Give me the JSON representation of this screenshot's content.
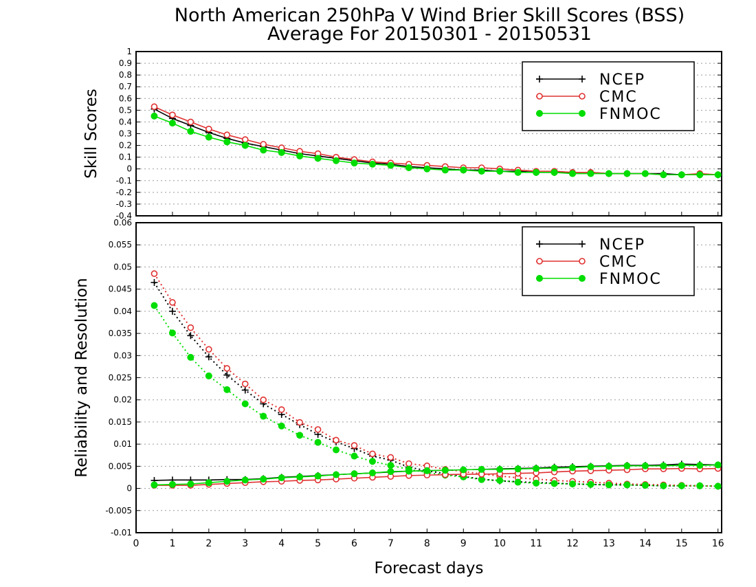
{
  "title": "North American 250hPa V Wind Brier Skill Scores (BSS)",
  "subtitle": "Average For 20150301 - 20150531",
  "xlabel": "Forecast days",
  "colors": {
    "NCEP": "#000000",
    "CMC": "#e03030",
    "FNMOC": "#00dd00",
    "grid": "#9a9a9a"
  },
  "chart_data": [
    {
      "type": "line",
      "ylabel": "Skill Scores",
      "xlim": [
        0,
        16.1
      ],
      "ylim": [
        -0.4,
        1
      ],
      "xticks": [
        0,
        1,
        2,
        3,
        4,
        5,
        6,
        7,
        8,
        9,
        10,
        11,
        12,
        13,
        14,
        15,
        16
      ],
      "yticks": [
        -0.4,
        -0.3,
        -0.2,
        -0.1,
        0,
        0.1,
        0.2,
        0.3,
        0.4,
        0.5,
        0.6,
        0.7,
        0.8,
        0.9,
        1
      ],
      "ytick_labels": [
        "-0.4",
        "-0.3",
        "-0.2",
        "-0.1",
        "0",
        "0.1",
        "0.2",
        "0.3",
        "0.4",
        "0.5",
        "0.6",
        "0.7",
        "0.8",
        "0.9",
        "1"
      ],
      "grid": true,
      "legend_position": "top-right",
      "legend": [
        "NCEP",
        "CMC",
        "FNMOC"
      ],
      "x": [
        0.5,
        1,
        1.5,
        2,
        2.5,
        3,
        3.5,
        4,
        4.5,
        5,
        5.5,
        6,
        6.5,
        7,
        7.5,
        8,
        8.5,
        9,
        9.5,
        10,
        10.5,
        11,
        11.5,
        12,
        12.5,
        13,
        13.5,
        14,
        14.5,
        15,
        15.5,
        16
      ],
      "series": [
        {
          "name": "NCEP",
          "marker": "plus",
          "values": [
            0.51,
            0.43,
            0.37,
            0.31,
            0.26,
            0.22,
            0.19,
            0.16,
            0.13,
            0.11,
            0.09,
            0.07,
            0.05,
            0.04,
            0.02,
            0.01,
            0.0,
            -0.01,
            -0.01,
            -0.02,
            -0.02,
            -0.03,
            -0.03,
            -0.03,
            -0.03,
            -0.04,
            -0.04,
            -0.04,
            -0.04,
            -0.05,
            -0.05,
            -0.05
          ]
        },
        {
          "name": "CMC",
          "marker": "open-circle",
          "values": [
            0.53,
            0.46,
            0.4,
            0.34,
            0.29,
            0.25,
            0.21,
            0.18,
            0.15,
            0.13,
            0.1,
            0.08,
            0.06,
            0.05,
            0.04,
            0.03,
            0.02,
            0.01,
            0.01,
            0.0,
            -0.01,
            -0.02,
            -0.02,
            -0.03,
            -0.03,
            -0.04,
            -0.04,
            -0.04,
            -0.05,
            -0.05,
            -0.04,
            -0.05
          ]
        },
        {
          "name": "FNMOC",
          "marker": "filled-circle",
          "values": [
            0.45,
            0.39,
            0.32,
            0.27,
            0.23,
            0.2,
            0.16,
            0.14,
            0.11,
            0.09,
            0.07,
            0.05,
            0.04,
            0.03,
            0.01,
            0.0,
            -0.01,
            -0.01,
            -0.02,
            -0.02,
            -0.03,
            -0.03,
            -0.03,
            -0.04,
            -0.04,
            -0.04,
            -0.04,
            -0.04,
            -0.05,
            -0.05,
            -0.05,
            -0.05
          ]
        }
      ]
    },
    {
      "type": "line",
      "ylabel": "Reliability and Resolution",
      "xlim": [
        0,
        16.1
      ],
      "ylim": [
        -0.01,
        0.06
      ],
      "xticks": [
        0,
        1,
        2,
        3,
        4,
        5,
        6,
        7,
        8,
        9,
        10,
        11,
        12,
        13,
        14,
        15,
        16
      ],
      "yticks": [
        -0.01,
        -0.005,
        0,
        0.005,
        0.01,
        0.015,
        0.02,
        0.025,
        0.03,
        0.035,
        0.04,
        0.045,
        0.05,
        0.055,
        0.06
      ],
      "ytick_labels": [
        "-0.01",
        "-0.005",
        "0",
        "0.005",
        "0.01",
        "0.015",
        "0.02",
        "0.025",
        "0.03",
        "0.035",
        "0.04",
        "0.045",
        "0.05",
        "0.055",
        "0.06"
      ],
      "grid": true,
      "legend_position": "top-right",
      "legend": [
        "NCEP",
        "CMC",
        "FNMOC"
      ],
      "x": [
        0.5,
        1,
        1.5,
        2,
        2.5,
        3,
        3.5,
        4,
        4.5,
        5,
        5.5,
        6,
        6.5,
        7,
        7.5,
        8,
        8.5,
        9,
        9.5,
        10,
        10.5,
        11,
        11.5,
        12,
        12.5,
        13,
        13.5,
        14,
        14.5,
        15,
        15.5,
        16
      ],
      "series": [
        {
          "name": "NCEP",
          "marker": "plus",
          "line": "dotted",
          "values": [
            0.0465,
            0.04,
            0.0345,
            0.0297,
            0.0256,
            0.0222,
            0.0191,
            0.0167,
            0.0144,
            0.0122,
            0.0105,
            0.009,
            0.0073,
            0.0064,
            0.0048,
            0.004,
            0.0033,
            0.0027,
            0.0021,
            0.0017,
            0.0015,
            0.0013,
            0.0012,
            0.001,
            0.0009,
            0.0008,
            0.0008,
            0.0007,
            0.0006,
            0.0006,
            0.0006,
            0.0005
          ]
        },
        {
          "name": "CMC",
          "marker": "open-circle",
          "line": "dotted",
          "values": [
            0.0485,
            0.042,
            0.0363,
            0.0314,
            0.0271,
            0.0236,
            0.02,
            0.0178,
            0.0149,
            0.0133,
            0.0109,
            0.0097,
            0.0078,
            0.007,
            0.0056,
            0.0051,
            0.0043,
            0.0038,
            0.0033,
            0.0028,
            0.0024,
            0.0021,
            0.0018,
            0.0016,
            0.0014,
            0.0012,
            0.001,
            0.0009,
            0.0008,
            0.0007,
            0.0006,
            0.0005
          ]
        },
        {
          "name": "FNMOC",
          "marker": "filled-circle",
          "line": "dotted",
          "values": [
            0.0413,
            0.0351,
            0.0296,
            0.0254,
            0.0223,
            0.0191,
            0.0163,
            0.0141,
            0.012,
            0.0104,
            0.0087,
            0.0073,
            0.0061,
            0.0052,
            0.0043,
            0.0036,
            0.003,
            0.0026,
            0.002,
            0.0018,
            0.0014,
            0.0012,
            0.0011,
            0.001,
            0.0009,
            0.0008,
            0.0008,
            0.0007,
            0.0006,
            0.0006,
            0.0006,
            0.0005
          ]
        },
        {
          "name": "NCEP",
          "marker": "plus",
          "line": "solid",
          "values": [
            0.0018,
            0.0019,
            0.0019,
            0.0019,
            0.002,
            0.002,
            0.0022,
            0.0025,
            0.0027,
            0.0029,
            0.0031,
            0.0033,
            0.0035,
            0.0037,
            0.0039,
            0.004,
            0.0041,
            0.0042,
            0.0043,
            0.0044,
            0.0045,
            0.0046,
            0.0048,
            0.0049,
            0.005,
            0.0051,
            0.0052,
            0.0052,
            0.0053,
            0.0055,
            0.0054,
            0.0053
          ]
        },
        {
          "name": "CMC",
          "marker": "open-circle",
          "line": "solid",
          "values": [
            0.0007,
            0.0007,
            0.0007,
            0.0009,
            0.0011,
            0.0013,
            0.0015,
            0.0016,
            0.0018,
            0.0019,
            0.0021,
            0.0023,
            0.0025,
            0.0027,
            0.0029,
            0.003,
            0.0031,
            0.0032,
            0.0032,
            0.0033,
            0.0034,
            0.0035,
            0.0037,
            0.0039,
            0.004,
            0.0041,
            0.0042,
            0.0044,
            0.0044,
            0.0045,
            0.0044,
            0.0045
          ]
        },
        {
          "name": "FNMOC",
          "marker": "filled-circle",
          "line": "solid",
          "values": [
            0.0008,
            0.0009,
            0.001,
            0.0013,
            0.0016,
            0.0019,
            0.0021,
            0.0024,
            0.0026,
            0.0028,
            0.0031,
            0.0033,
            0.0035,
            0.0038,
            0.0039,
            0.004,
            0.0041,
            0.0042,
            0.0043,
            0.0043,
            0.0044,
            0.0045,
            0.0046,
            0.0047,
            0.0049,
            0.005,
            0.0051,
            0.0051,
            0.0051,
            0.0052,
            0.0052,
            0.0053
          ]
        }
      ]
    }
  ]
}
